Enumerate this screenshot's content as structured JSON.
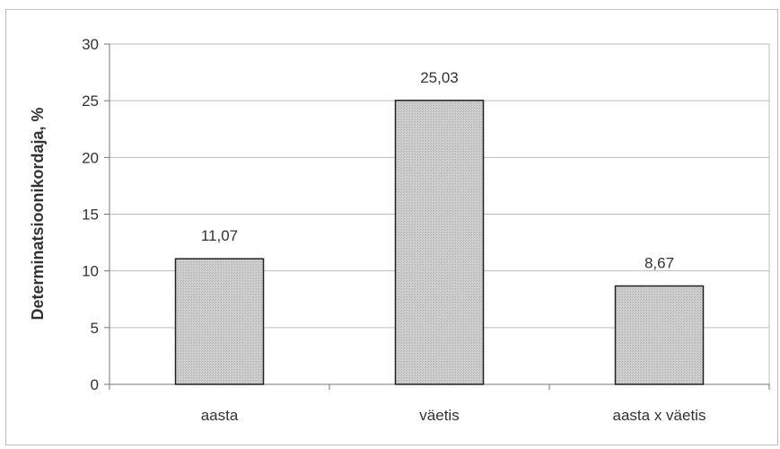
{
  "chart_data": {
    "type": "bar",
    "categories": [
      "aasta",
      "väetis",
      "aasta x väetis"
    ],
    "values": [
      11.07,
      25.03,
      8.67
    ],
    "value_labels": [
      "11,07",
      "25,03",
      "8,67"
    ],
    "ylabel": "Determinatsioonikordaja, %",
    "ylim": [
      0,
      30
    ],
    "yticks": [
      0,
      5,
      10,
      15,
      20,
      25,
      30
    ],
    "grid": true,
    "legend": "none",
    "colors": {
      "bar_fill": "#c8c8c8",
      "bar_stroke": "#222222",
      "grid": "#bdbdbd",
      "axis": "#777777",
      "text": "#333333"
    }
  }
}
